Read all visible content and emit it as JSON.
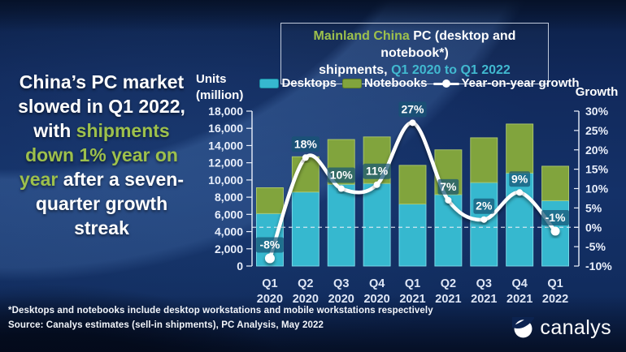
{
  "headline": {
    "lines": [
      [
        {
          "t": "China’s PC market",
          "c": "white"
        }
      ],
      [
        {
          "t": "slowed in Q1 2022,",
          "c": "white"
        }
      ],
      [
        {
          "t": "with ",
          "c": "white"
        },
        {
          "t": "shipments",
          "c": "green"
        }
      ],
      [
        {
          "t": "down 1% year on",
          "c": "green"
        }
      ],
      [
        {
          "t": "year",
          "c": "green"
        },
        {
          "t": " after a seven-",
          "c": "white"
        }
      ],
      [
        {
          "t": "quarter growth",
          "c": "white"
        }
      ],
      [
        {
          "t": "streak",
          "c": "white"
        }
      ]
    ]
  },
  "title_box": {
    "line1": [
      {
        "t": "Mainland China ",
        "c": "green"
      },
      {
        "t": "PC (desktop and notebook*)",
        "c": "white"
      }
    ],
    "line2": [
      {
        "t": "shipments, ",
        "c": "white"
      },
      {
        "t": "Q1 2020 to Q1 2022",
        "c": "teal"
      }
    ]
  },
  "legend": {
    "items": [
      {
        "label": "Desktops",
        "swatch": "desktops"
      },
      {
        "label": "Notebooks",
        "swatch": "notebooks"
      },
      {
        "label": "Year-on-year growth",
        "swatch": "line"
      }
    ]
  },
  "footer": {
    "footnote": "*Desktops and notebooks include desktop workstations and mobile workstations respectively",
    "source": "Source: Canalys estimates (sell-in shipments), PC Analysis, May 2022"
  },
  "logo": {
    "text": "canalys"
  },
  "colors": {
    "desktops": "#36b8cf",
    "desktops_edge": "#7fdcea",
    "notebooks": "#81a43d",
    "notebooks_edge": "#aec96e",
    "growth_line": "#ffffff",
    "label_box": "rgba(22,84,117,0.72)",
    "axis_text": "#e9effb",
    "green_text": "#9dc04c",
    "teal_text": "#41b9d0"
  },
  "chart_data": {
    "type": "bar+line",
    "title": "Mainland China PC (desktop and notebook*) shipments, Q1 2020 to Q1 2022",
    "categories": [
      "Q1 2020",
      "Q2 2020",
      "Q3 2020",
      "Q4 2020",
      "Q1 2021",
      "Q2 2021",
      "Q3 2021",
      "Q4 2021",
      "Q1 2022"
    ],
    "series": [
      {
        "name": "Desktops",
        "values": [
          6100,
          8600,
          9500,
          9600,
          7200,
          8300,
          9700,
          10800,
          7600
        ]
      },
      {
        "name": "Notebooks",
        "values": [
          3000,
          4100,
          5200,
          5400,
          4500,
          5200,
          5200,
          5700,
          4000
        ]
      }
    ],
    "line_series": {
      "name": "Year-on-year growth",
      "values_pct": [
        -8,
        18,
        10,
        11,
        27,
        7,
        2,
        9,
        -1
      ],
      "labels": [
        "-8%",
        "18%",
        "10%",
        "11%",
        "27%",
        "7%",
        "2%",
        "9%",
        "-1%"
      ]
    },
    "left_axis": {
      "title": [
        "Units",
        "(million)"
      ],
      "min": 0,
      "max": 18000,
      "step": 2000
    },
    "right_axis": {
      "title": "Growth",
      "min": -10,
      "max": 30,
      "step": 5,
      "suffix": "%"
    },
    "zero_growth_dashed_line": true,
    "legend_position": "top",
    "stacked": true
  }
}
